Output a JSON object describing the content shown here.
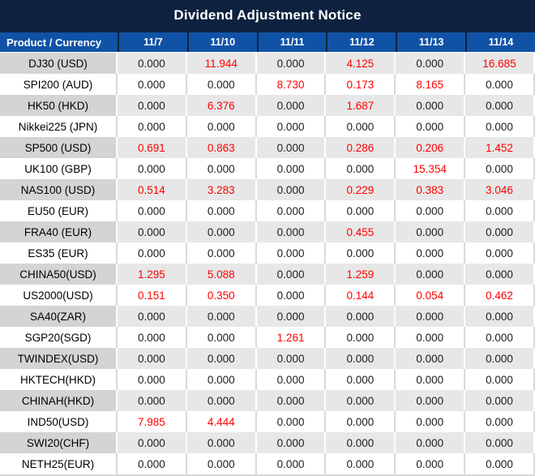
{
  "title": "Dividend Adjustment Notice",
  "colors": {
    "title_bar_bg": "#0e2240",
    "header_cell_bg": "#1053a6",
    "header_text": "#ffffff",
    "striped_label_bg": "#d4d4d4",
    "striped_value_bg": "#e7e7e7",
    "plain_row_bg": "#ffffff",
    "zero_value_text": "#1c1c1c",
    "nonzero_value_text": "#fe0000"
  },
  "table": {
    "product_header": "Product / Currency",
    "date_headers": [
      "11/7",
      "11/10",
      "11/11",
      "11/12",
      "11/13",
      "11/14"
    ],
    "rows": [
      {
        "product": "DJ30 (USD)",
        "values": [
          "0.000",
          "11.944",
          "0.000",
          "4.125",
          "0.000",
          "16.685"
        ]
      },
      {
        "product": "SPI200 (AUD)",
        "values": [
          "0.000",
          "0.000",
          "8.730",
          "0.173",
          "8.165",
          "0.000"
        ]
      },
      {
        "product": "HK50 (HKD)",
        "values": [
          "0.000",
          "6.376",
          "0.000",
          "1.687",
          "0.000",
          "0.000"
        ]
      },
      {
        "product": "Nikkei225 (JPN)",
        "values": [
          "0.000",
          "0.000",
          "0.000",
          "0.000",
          "0.000",
          "0.000"
        ]
      },
      {
        "product": "SP500 (USD)",
        "values": [
          "0.691",
          "0.863",
          "0.000",
          "0.286",
          "0.206",
          "1.452"
        ]
      },
      {
        "product": "UK100 (GBP)",
        "values": [
          "0.000",
          "0.000",
          "0.000",
          "0.000",
          "15.354",
          "0.000"
        ]
      },
      {
        "product": "NAS100 (USD)",
        "values": [
          "0.514",
          "3.283",
          "0.000",
          "0.229",
          "0.383",
          "3.046"
        ]
      },
      {
        "product": "EU50 (EUR)",
        "values": [
          "0.000",
          "0.000",
          "0.000",
          "0.000",
          "0.000",
          "0.000"
        ]
      },
      {
        "product": "FRA40 (EUR)",
        "values": [
          "0.000",
          "0.000",
          "0.000",
          "0.455",
          "0.000",
          "0.000"
        ]
      },
      {
        "product": "ES35 (EUR)",
        "values": [
          "0.000",
          "0.000",
          "0.000",
          "0.000",
          "0.000",
          "0.000"
        ]
      },
      {
        "product": "CHINA50(USD)",
        "values": [
          "1.295",
          "5.088",
          "0.000",
          "1.259",
          "0.000",
          "0.000"
        ]
      },
      {
        "product": "US2000(USD)",
        "values": [
          "0.151",
          "0.350",
          "0.000",
          "0.144",
          "0.054",
          "0.462"
        ]
      },
      {
        "product": "SA40(ZAR)",
        "values": [
          "0.000",
          "0.000",
          "0.000",
          "0.000",
          "0.000",
          "0.000"
        ]
      },
      {
        "product": "SGP20(SGD)",
        "values": [
          "0.000",
          "0.000",
          "1.261",
          "0.000",
          "0.000",
          "0.000"
        ]
      },
      {
        "product": "TWINDEX(USD)",
        "values": [
          "0.000",
          "0.000",
          "0.000",
          "0.000",
          "0.000",
          "0.000"
        ]
      },
      {
        "product": "HKTECH(HKD)",
        "values": [
          "0.000",
          "0.000",
          "0.000",
          "0.000",
          "0.000",
          "0.000"
        ]
      },
      {
        "product": "CHINAH(HKD)",
        "values": [
          "0.000",
          "0.000",
          "0.000",
          "0.000",
          "0.000",
          "0.000"
        ]
      },
      {
        "product": "IND50(USD)",
        "values": [
          "7.985",
          "4.444",
          "0.000",
          "0.000",
          "0.000",
          "0.000"
        ]
      },
      {
        "product": "SWI20(CHF)",
        "values": [
          "0.000",
          "0.000",
          "0.000",
          "0.000",
          "0.000",
          "0.000"
        ]
      },
      {
        "product": "NETH25(EUR)",
        "values": [
          "0.000",
          "0.000",
          "0.000",
          "0.000",
          "0.000",
          "0.000"
        ]
      }
    ]
  }
}
